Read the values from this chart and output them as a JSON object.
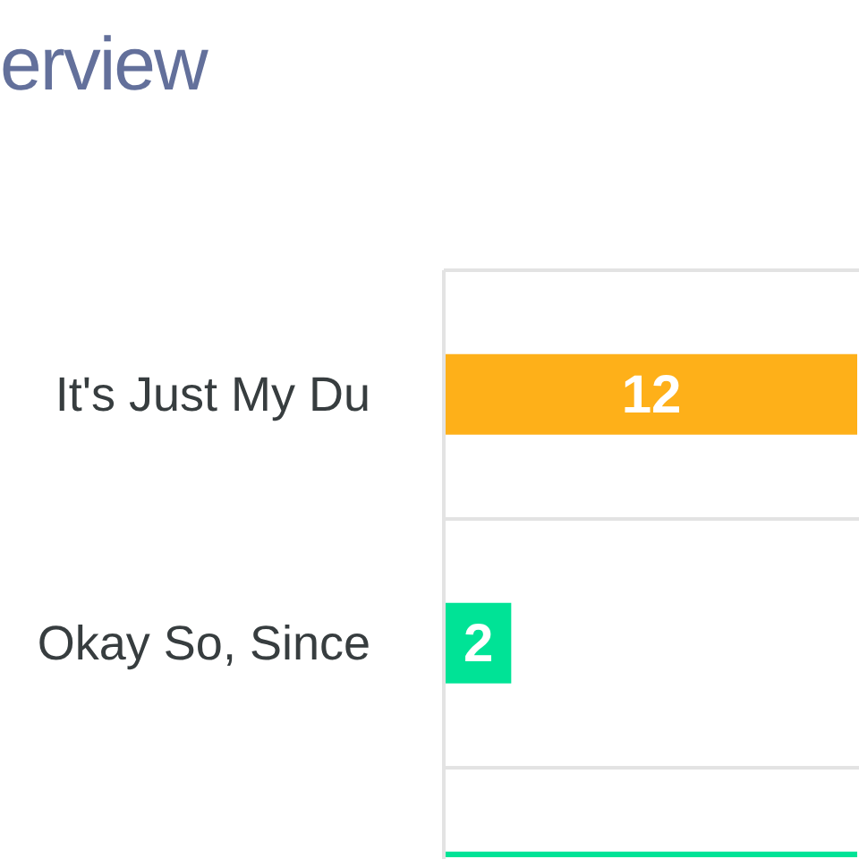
{
  "chart_data": {
    "type": "bar",
    "orientation": "horizontal",
    "title": "erview",
    "categories": [
      "It's Just My Du",
      "Okay So, Since",
      null
    ],
    "values": [
      12,
      2,
      12
    ],
    "colors": [
      "#feb019",
      "#00e396",
      "#00e396"
    ],
    "value_labels": [
      "12",
      "2",
      null
    ],
    "grid": "y",
    "tick_labels": "y"
  }
}
